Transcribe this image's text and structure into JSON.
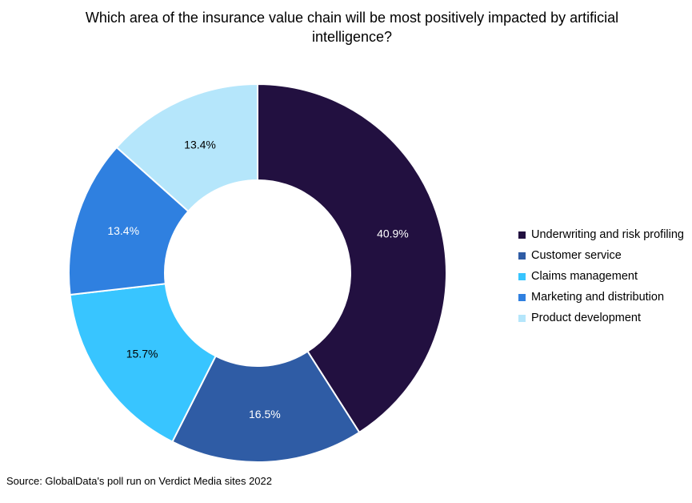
{
  "chart_data": {
    "type": "pie",
    "style": "donut",
    "title": "Which area of the insurance value chain will be most positively impacted by artificial intelligence?",
    "categories": [
      "Underwriting and risk profiling",
      "Customer service",
      "Claims management",
      "Marketing and distribution",
      "Product development"
    ],
    "values": [
      40.9,
      16.5,
      15.7,
      13.4,
      13.4
    ],
    "data_labels": [
      "40.9%",
      "16.5%",
      "15.7%",
      "13.4%",
      "13.4%"
    ],
    "colors": [
      "#221040",
      "#2f5ca5",
      "#38c5ff",
      "#2f80e0",
      "#b5e6fb"
    ],
    "label_colors": [
      "#ffffff",
      "#ffffff",
      "#000000",
      "#ffffff",
      "#000000"
    ],
    "legend_position": "right"
  },
  "source": "Source: GlobalData's poll run on Verdict Media sites 2022"
}
